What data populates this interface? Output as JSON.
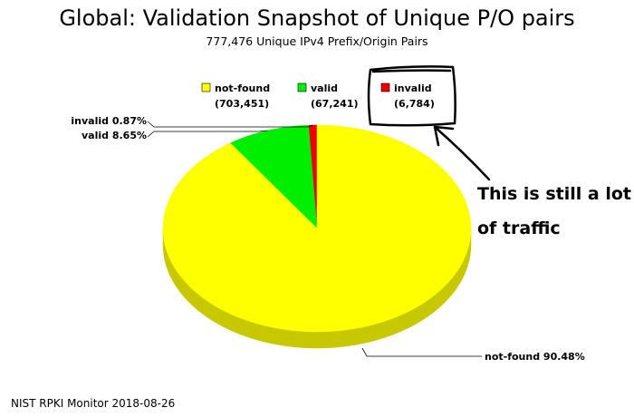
{
  "chart_data": {
    "type": "pie",
    "title": "Global: Validation Snapshot of Unique P/O pairs",
    "subtitle": "777,476 Unique IPv4 Prefix/Origin Pairs",
    "slices": [
      {
        "name": "not-found",
        "count": "(703,451)",
        "value": 703451,
        "percent_label": "not-found 90.48%",
        "color": "#ffff00",
        "side": "#c8c800"
      },
      {
        "name": "valid",
        "count": "(67,241)",
        "value": 67241,
        "percent_label": "valid 8.65%",
        "color": "#00ee00",
        "side": "#009900"
      },
      {
        "name": "invalid",
        "count": "(6,784)",
        "value": 6784,
        "percent_label": "invalid 0.87%",
        "color": "#ee0000",
        "side": "#990000"
      }
    ],
    "legend_position": "top"
  },
  "annotation": {
    "line1": "This is still a lot",
    "line2": "of traffic"
  },
  "footer": "NIST RPKI Monitor 2018-08-26"
}
